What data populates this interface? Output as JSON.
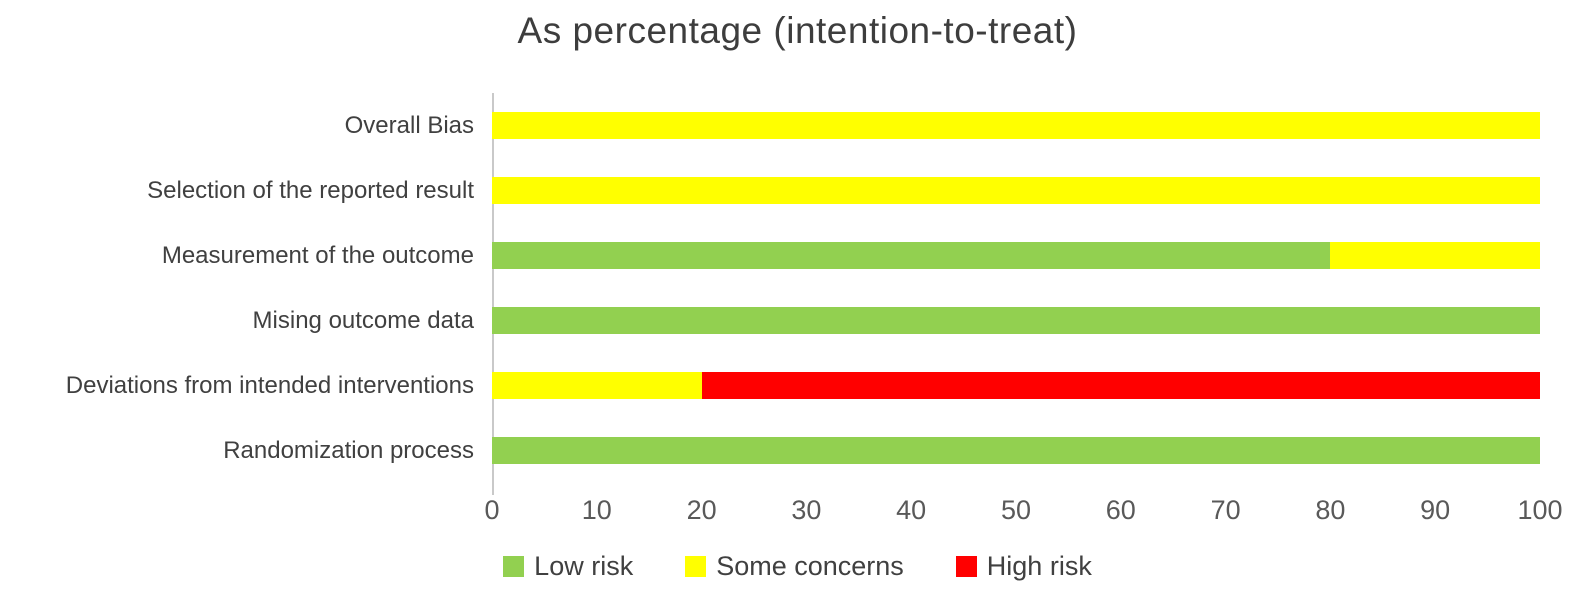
{
  "chart_data": {
    "type": "bar",
    "subtype": "horizontal-stacked",
    "title": "As percentage (intention-to-treat)",
    "categories_top_to_bottom": [
      "Overall Bias",
      "Selection of the reported result",
      "Measurement of the outcome",
      "Mising outcome data",
      "Deviations from intended interventions",
      "Randomization process"
    ],
    "series": [
      {
        "name": "Low risk",
        "color": "#92d050",
        "values": [
          0,
          0,
          80,
          100,
          0,
          100
        ]
      },
      {
        "name": "Some concerns",
        "color": "#ffff00",
        "values": [
          100,
          100,
          20,
          0,
          20,
          0
        ]
      },
      {
        "name": "High risk",
        "color": "#ff0000",
        "values": [
          0,
          0,
          0,
          0,
          80,
          0
        ]
      }
    ],
    "x_axis": {
      "min": 0,
      "max": 100,
      "tick_step": 10,
      "ticks": [
        "0",
        "10",
        "20",
        "30",
        "40",
        "50",
        "60",
        "70",
        "80",
        "90",
        "100"
      ]
    },
    "legend": {
      "position": "bottom-center",
      "entries": [
        "Low risk",
        "Some concerns",
        "High risk"
      ]
    },
    "grid": false,
    "colors": {
      "low_risk": "#92d050",
      "some_concerns": "#ffff00",
      "high_risk": "#ff0000",
      "axis_line": "#c9c9c9",
      "title_text": "#3d3d3d",
      "label_text": "#404040",
      "tick_text": "#595959"
    }
  }
}
